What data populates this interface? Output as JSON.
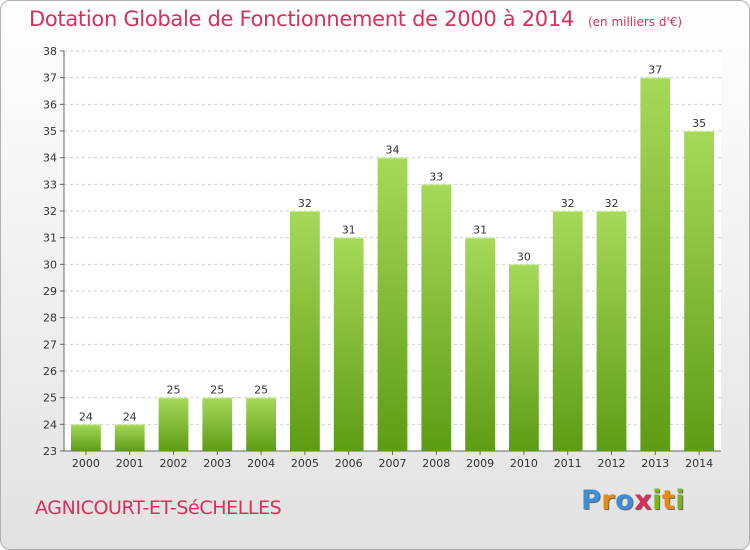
{
  "header": {
    "title": "Dotation Globale de Fonctionnement de 2000 à 2014",
    "unit": "(en milliers d'€)"
  },
  "footer": {
    "commune": "AGNICOURT-ET-SéCHELLES",
    "logo_letters": [
      "P",
      "r",
      "o",
      "x",
      "i",
      "t",
      "i"
    ]
  },
  "colors": {
    "title": "#d8305a",
    "bar_top": "#a6d95a",
    "bar_bottom": "#5e9c14",
    "logo": [
      "#3f8fd6",
      "#e58a12",
      "#3f8fd6",
      "#d8305a",
      "#7ab51d",
      "#e58a12",
      "#7ab51d"
    ]
  },
  "chart_data": {
    "type": "bar",
    "categories": [
      "2000",
      "2001",
      "2002",
      "2003",
      "2004",
      "2005",
      "2006",
      "2007",
      "2008",
      "2009",
      "2010",
      "2011",
      "2012",
      "2013",
      "2014"
    ],
    "values": [
      24,
      24,
      25,
      25,
      25,
      32,
      31,
      34,
      33,
      31,
      30,
      32,
      32,
      37,
      35
    ],
    "title": "Dotation Globale de Fonctionnement de 2000 à 2014",
    "subtitle": "(en milliers d'€)",
    "xlabel": "",
    "ylabel": "",
    "ylim": [
      23,
      38
    ],
    "yticks": [
      23,
      24,
      25,
      26,
      27,
      28,
      29,
      30,
      31,
      32,
      33,
      34,
      35,
      36,
      37,
      38
    ],
    "grid": true,
    "data_labels": true
  }
}
